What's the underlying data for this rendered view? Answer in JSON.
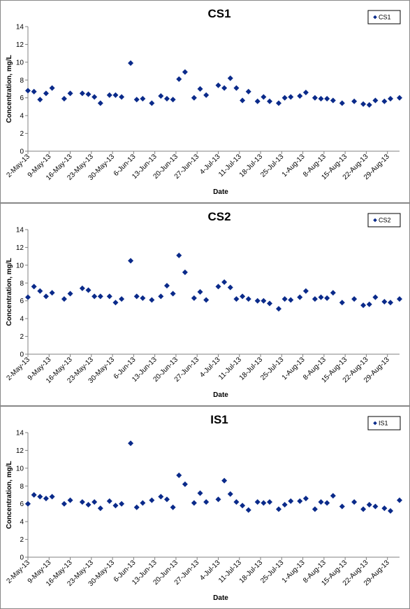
{
  "colors": {
    "marker": "#0a2a8a",
    "axis": "#808080",
    "frame": "#888888"
  },
  "chart_data": [
    {
      "type": "scatter",
      "title": "CS1",
      "xlabel": "Date",
      "ylabel": "Concentration, mg/L",
      "ylim": [
        0,
        14
      ],
      "yticks": [
        0,
        2,
        4,
        6,
        8,
        10,
        12,
        14
      ],
      "xlim": [
        "2013-05-02",
        "2013-09-02"
      ],
      "xticks": [
        "2-May-13",
        "9-May-13",
        "16-May-13",
        "23-May-13",
        "30-May-13",
        "6-Jun-13",
        "13-Jun-13",
        "20-Jun-13",
        "27-Jun-13",
        "4-Jul-13",
        "11-Jul-13",
        "18-Jul-13",
        "25-Jul-13",
        "1-Aug-13",
        "8-Aug-13",
        "15-Aug-13",
        "22-Aug-13",
        "29-Aug-13"
      ],
      "legend": "top-right",
      "grid": false,
      "series": [
        {
          "name": "CS1",
          "marker": "diamond",
          "points": [
            [
              "2013-05-02",
              6.8
            ],
            [
              "2013-05-04",
              6.7
            ],
            [
              "2013-05-06",
              5.8
            ],
            [
              "2013-05-08",
              6.5
            ],
            [
              "2013-05-10",
              7.1
            ],
            [
              "2013-05-14",
              5.9
            ],
            [
              "2013-05-16",
              6.5
            ],
            [
              "2013-05-20",
              6.5
            ],
            [
              "2013-05-22",
              6.4
            ],
            [
              "2013-05-24",
              6.1
            ],
            [
              "2013-05-26",
              5.4
            ],
            [
              "2013-05-29",
              6.3
            ],
            [
              "2013-05-31",
              6.3
            ],
            [
              "2013-06-02",
              6.1
            ],
            [
              "2013-06-05",
              9.9
            ],
            [
              "2013-06-07",
              5.8
            ],
            [
              "2013-06-09",
              5.9
            ],
            [
              "2013-06-12",
              5.4
            ],
            [
              "2013-06-15",
              6.2
            ],
            [
              "2013-06-17",
              5.9
            ],
            [
              "2013-06-19",
              5.8
            ],
            [
              "2013-06-21",
              8.1
            ],
            [
              "2013-06-23",
              8.9
            ],
            [
              "2013-06-26",
              6.0
            ],
            [
              "2013-06-28",
              7.0
            ],
            [
              "2013-06-30",
              6.3
            ],
            [
              "2013-07-04",
              7.4
            ],
            [
              "2013-07-06",
              7.1
            ],
            [
              "2013-07-08",
              8.2
            ],
            [
              "2013-07-10",
              7.1
            ],
            [
              "2013-07-12",
              5.7
            ],
            [
              "2013-07-14",
              6.7
            ],
            [
              "2013-07-17",
              5.6
            ],
            [
              "2013-07-19",
              6.1
            ],
            [
              "2013-07-21",
              5.6
            ],
            [
              "2013-07-24",
              5.4
            ],
            [
              "2013-07-26",
              6.0
            ],
            [
              "2013-07-28",
              6.1
            ],
            [
              "2013-07-31",
              6.2
            ],
            [
              "2013-08-02",
              6.6
            ],
            [
              "2013-08-05",
              6.0
            ],
            [
              "2013-08-07",
              5.9
            ],
            [
              "2013-08-09",
              5.9
            ],
            [
              "2013-08-11",
              5.7
            ],
            [
              "2013-08-14",
              5.4
            ],
            [
              "2013-08-18",
              5.6
            ],
            [
              "2013-08-21",
              5.3
            ],
            [
              "2013-08-23",
              5.2
            ],
            [
              "2013-08-25",
              5.7
            ],
            [
              "2013-08-28",
              5.6
            ],
            [
              "2013-08-30",
              5.9
            ],
            [
              "2013-09-02",
              6.0
            ]
          ]
        }
      ]
    },
    {
      "type": "scatter",
      "title": "CS2",
      "xlabel": "Date",
      "ylabel": "Concentration, mg/L",
      "ylim": [
        0,
        14
      ],
      "yticks": [
        0,
        2,
        4,
        6,
        8,
        10,
        12,
        14
      ],
      "xlim": [
        "2013-05-02",
        "2013-09-02"
      ],
      "xticks": [
        "2-May-13",
        "9-May-13",
        "16-May-13",
        "23-May-13",
        "30-May-13",
        "6-Jun-13",
        "13-Jun-13",
        "20-Jun-13",
        "27-Jun-13",
        "4-Jul-13",
        "11-Jul-13",
        "18-Jul-13",
        "25-Jul-13",
        "1-Aug-13",
        "8-Aug-13",
        "15-Aug-13",
        "22-Aug-13",
        "29-Aug-13"
      ],
      "legend": "top-right",
      "grid": false,
      "series": [
        {
          "name": "CS2",
          "marker": "diamond",
          "points": [
            [
              "2013-05-02",
              6.4
            ],
            [
              "2013-05-04",
              7.6
            ],
            [
              "2013-05-06",
              7.1
            ],
            [
              "2013-05-08",
              6.5
            ],
            [
              "2013-05-10",
              6.9
            ],
            [
              "2013-05-14",
              6.2
            ],
            [
              "2013-05-16",
              6.8
            ],
            [
              "2013-05-20",
              7.4
            ],
            [
              "2013-05-22",
              7.2
            ],
            [
              "2013-05-24",
              6.5
            ],
            [
              "2013-05-26",
              6.5
            ],
            [
              "2013-05-29",
              6.5
            ],
            [
              "2013-05-31",
              5.8
            ],
            [
              "2013-06-02",
              6.2
            ],
            [
              "2013-06-05",
              10.5
            ],
            [
              "2013-06-07",
              6.5
            ],
            [
              "2013-06-09",
              6.3
            ],
            [
              "2013-06-12",
              6.1
            ],
            [
              "2013-06-15",
              6.5
            ],
            [
              "2013-06-17",
              7.7
            ],
            [
              "2013-06-19",
              6.8
            ],
            [
              "2013-06-21",
              11.1
            ],
            [
              "2013-06-23",
              9.2
            ],
            [
              "2013-06-26",
              6.3
            ],
            [
              "2013-06-28",
              7.0
            ],
            [
              "2013-06-30",
              6.1
            ],
            [
              "2013-07-04",
              7.6
            ],
            [
              "2013-07-06",
              8.1
            ],
            [
              "2013-07-08",
              7.5
            ],
            [
              "2013-07-10",
              6.2
            ],
            [
              "2013-07-12",
              6.5
            ],
            [
              "2013-07-14",
              6.2
            ],
            [
              "2013-07-17",
              6.0
            ],
            [
              "2013-07-19",
              6.0
            ],
            [
              "2013-07-21",
              5.7
            ],
            [
              "2013-07-24",
              5.1
            ],
            [
              "2013-07-26",
              6.2
            ],
            [
              "2013-07-28",
              6.1
            ],
            [
              "2013-07-31",
              6.4
            ],
            [
              "2013-08-02",
              7.1
            ],
            [
              "2013-08-05",
              6.2
            ],
            [
              "2013-08-07",
              6.4
            ],
            [
              "2013-08-09",
              6.3
            ],
            [
              "2013-08-11",
              6.9
            ],
            [
              "2013-08-14",
              5.8
            ],
            [
              "2013-08-18",
              6.2
            ],
            [
              "2013-08-21",
              5.5
            ],
            [
              "2013-08-23",
              5.6
            ],
            [
              "2013-08-25",
              6.4
            ],
            [
              "2013-08-28",
              5.9
            ],
            [
              "2013-08-30",
              5.8
            ],
            [
              "2013-09-02",
              6.2
            ]
          ]
        }
      ]
    },
    {
      "type": "scatter",
      "title": "IS1",
      "xlabel": "Date",
      "ylabel": "Concentration, mg/L",
      "ylim": [
        0,
        14
      ],
      "yticks": [
        0,
        2,
        4,
        6,
        8,
        10,
        12,
        14
      ],
      "xlim": [
        "2013-05-02",
        "2013-09-02"
      ],
      "xticks": [
        "2-May-13",
        "9-May-13",
        "16-May-13",
        "23-May-13",
        "30-May-13",
        "6-Jun-13",
        "13-Jun-13",
        "20-Jun-13",
        "27-Jun-13",
        "4-Jul-13",
        "11-Jul-13",
        "18-Jul-13",
        "25-Jul-13",
        "1-Aug-13",
        "8-Aug-13",
        "15-Aug-13",
        "22-Aug-13",
        "29-Aug-13"
      ],
      "legend": "top-right",
      "grid": false,
      "series": [
        {
          "name": "IS1",
          "marker": "diamond",
          "points": [
            [
              "2013-05-02",
              6.0
            ],
            [
              "2013-05-04",
              7.0
            ],
            [
              "2013-05-06",
              6.8
            ],
            [
              "2013-05-08",
              6.6
            ],
            [
              "2013-05-10",
              6.8
            ],
            [
              "2013-05-14",
              6.0
            ],
            [
              "2013-05-16",
              6.4
            ],
            [
              "2013-05-20",
              6.2
            ],
            [
              "2013-05-22",
              5.9
            ],
            [
              "2013-05-24",
              6.2
            ],
            [
              "2013-05-26",
              5.5
            ],
            [
              "2013-05-29",
              6.3
            ],
            [
              "2013-05-31",
              5.8
            ],
            [
              "2013-06-02",
              6.0
            ],
            [
              "2013-06-05",
              12.8
            ],
            [
              "2013-06-07",
              5.6
            ],
            [
              "2013-06-09",
              6.1
            ],
            [
              "2013-06-12",
              6.4
            ],
            [
              "2013-06-15",
              6.8
            ],
            [
              "2013-06-17",
              6.5
            ],
            [
              "2013-06-19",
              5.6
            ],
            [
              "2013-06-21",
              9.2
            ],
            [
              "2013-06-23",
              8.2
            ],
            [
              "2013-06-26",
              6.1
            ],
            [
              "2013-06-28",
              7.2
            ],
            [
              "2013-06-30",
              6.2
            ],
            [
              "2013-07-04",
              6.5
            ],
            [
              "2013-07-06",
              8.6
            ],
            [
              "2013-07-08",
              7.1
            ],
            [
              "2013-07-10",
              6.2
            ],
            [
              "2013-07-12",
              5.8
            ],
            [
              "2013-07-14",
              5.3
            ],
            [
              "2013-07-17",
              6.2
            ],
            [
              "2013-07-19",
              6.1
            ],
            [
              "2013-07-21",
              6.2
            ],
            [
              "2013-07-24",
              5.4
            ],
            [
              "2013-07-26",
              5.9
            ],
            [
              "2013-07-28",
              6.3
            ],
            [
              "2013-07-31",
              6.3
            ],
            [
              "2013-08-02",
              6.6
            ],
            [
              "2013-08-05",
              5.4
            ],
            [
              "2013-08-07",
              6.2
            ],
            [
              "2013-08-09",
              6.1
            ],
            [
              "2013-08-11",
              6.9
            ],
            [
              "2013-08-14",
              5.7
            ],
            [
              "2013-08-18",
              6.2
            ],
            [
              "2013-08-21",
              5.4
            ],
            [
              "2013-08-23",
              5.9
            ],
            [
              "2013-08-25",
              5.7
            ],
            [
              "2013-08-28",
              5.5
            ],
            [
              "2013-08-30",
              5.2
            ],
            [
              "2013-09-02",
              6.4
            ]
          ]
        }
      ]
    }
  ]
}
